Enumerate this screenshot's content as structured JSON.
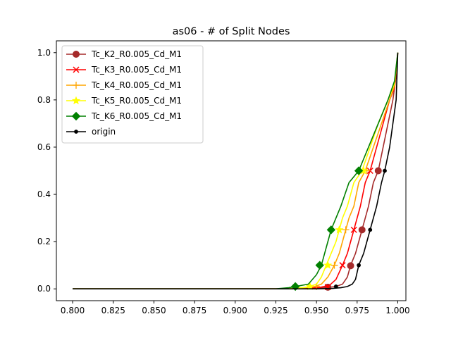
{
  "chart_data": {
    "type": "line",
    "title": "as06 - # of Split Nodes",
    "xlabel": "",
    "ylabel": "",
    "xlim": [
      0.79,
      1.005
    ],
    "ylim": [
      -0.05,
      1.05
    ],
    "xticks": [
      "0.800",
      "0.825",
      "0.850",
      "0.875",
      "0.900",
      "0.925",
      "0.950",
      "0.975",
      "1.000"
    ],
    "yticks": [
      "0.0",
      "0.2",
      "0.4",
      "0.6",
      "0.8",
      "1.0"
    ],
    "legend_position": "upper-left",
    "grid": false,
    "series": [
      {
        "name": "Tc_K2_R0.005_Cd_M1",
        "color": "#a52a2a",
        "marker": "circle",
        "points": [
          [
            0.8,
            0
          ],
          [
            0.93,
            0
          ],
          [
            0.945,
            0.002
          ],
          [
            0.955,
            0.005
          ],
          [
            0.962,
            0.01
          ],
          [
            0.966,
            0.02
          ],
          [
            0.969,
            0.05
          ],
          [
            0.971,
            0.1
          ],
          [
            0.974,
            0.15
          ],
          [
            0.976,
            0.2
          ],
          [
            0.978,
            0.25
          ],
          [
            0.98,
            0.3
          ],
          [
            0.982,
            0.35
          ],
          [
            0.985,
            0.45
          ],
          [
            0.988,
            0.5
          ],
          [
            0.991,
            0.6
          ],
          [
            0.994,
            0.7
          ],
          [
            0.997,
            0.8
          ],
          [
            0.999,
            0.9
          ],
          [
            1.0,
            1.0
          ]
        ],
        "markers": [
          [
            0.957,
            0.007
          ],
          [
            0.971,
            0.098
          ],
          [
            0.978,
            0.25
          ],
          [
            0.988,
            0.5
          ]
        ]
      },
      {
        "name": "Tc_K3_R0.005_Cd_M1",
        "color": "#ff0000",
        "marker": "x",
        "points": [
          [
            0.8,
            0
          ],
          [
            0.93,
            0
          ],
          [
            0.942,
            0.002
          ],
          [
            0.952,
            0.006
          ],
          [
            0.958,
            0.015
          ],
          [
            0.962,
            0.04
          ],
          [
            0.966,
            0.1
          ],
          [
            0.969,
            0.15
          ],
          [
            0.971,
            0.2
          ],
          [
            0.973,
            0.25
          ],
          [
            0.975,
            0.3
          ],
          [
            0.977,
            0.35
          ],
          [
            0.98,
            0.45
          ],
          [
            0.983,
            0.5
          ],
          [
            0.987,
            0.6
          ],
          [
            0.991,
            0.7
          ],
          [
            0.995,
            0.8
          ],
          [
            0.998,
            0.85
          ],
          [
            1.0,
            1.0
          ]
        ],
        "markers": [
          [
            0.957,
            0.008
          ],
          [
            0.966,
            0.1
          ],
          [
            0.973,
            0.25
          ],
          [
            0.983,
            0.5
          ]
        ]
      },
      {
        "name": "Tc_K4_R0.005_Cd_M1",
        "color": "#ffa500",
        "marker": "plus",
        "points": [
          [
            0.8,
            0
          ],
          [
            0.93,
            0
          ],
          [
            0.94,
            0.003
          ],
          [
            0.948,
            0.008
          ],
          [
            0.953,
            0.02
          ],
          [
            0.957,
            0.05
          ],
          [
            0.961,
            0.1
          ],
          [
            0.964,
            0.15
          ],
          [
            0.966,
            0.2
          ],
          [
            0.968,
            0.25
          ],
          [
            0.97,
            0.3
          ],
          [
            0.973,
            0.35
          ],
          [
            0.976,
            0.45
          ],
          [
            0.98,
            0.5
          ],
          [
            0.985,
            0.6
          ],
          [
            0.99,
            0.7
          ],
          [
            0.995,
            0.8
          ],
          [
            0.998,
            0.86
          ],
          [
            1.0,
            1.0
          ]
        ],
        "markers": [
          [
            0.95,
            0.01
          ],
          [
            0.961,
            0.1
          ],
          [
            0.968,
            0.25
          ],
          [
            0.981,
            0.5
          ]
        ]
      },
      {
        "name": "Tc_K5_R0.005_Cd_M1",
        "color": "#ffff00",
        "marker": "star",
        "points": [
          [
            0.8,
            0
          ],
          [
            0.93,
            0
          ],
          [
            0.938,
            0.003
          ],
          [
            0.945,
            0.008
          ],
          [
            0.95,
            0.02
          ],
          [
            0.953,
            0.05
          ],
          [
            0.956,
            0.1
          ],
          [
            0.959,
            0.15
          ],
          [
            0.962,
            0.2
          ],
          [
            0.964,
            0.25
          ],
          [
            0.966,
            0.3
          ],
          [
            0.969,
            0.35
          ],
          [
            0.973,
            0.45
          ],
          [
            0.978,
            0.5
          ],
          [
            0.983,
            0.6
          ],
          [
            0.988,
            0.7
          ],
          [
            0.994,
            0.8
          ],
          [
            0.998,
            0.87
          ],
          [
            1.0,
            1.0
          ]
        ],
        "markers": [
          [
            0.946,
            0.01
          ],
          [
            0.957,
            0.1
          ],
          [
            0.964,
            0.25
          ],
          [
            0.979,
            0.5
          ]
        ]
      },
      {
        "name": "Tc_K6_R0.005_Cd_M1",
        "color": "#008000",
        "marker": "diamond",
        "points": [
          [
            0.8,
            0
          ],
          [
            0.925,
            0
          ],
          [
            0.933,
            0.005
          ],
          [
            0.937,
            0.01
          ],
          [
            0.945,
            0.02
          ],
          [
            0.95,
            0.06
          ],
          [
            0.953,
            0.1
          ],
          [
            0.955,
            0.15
          ],
          [
            0.957,
            0.2
          ],
          [
            0.959,
            0.25
          ],
          [
            0.962,
            0.3
          ],
          [
            0.965,
            0.35
          ],
          [
            0.97,
            0.45
          ],
          [
            0.976,
            0.5
          ],
          [
            0.982,
            0.6
          ],
          [
            0.988,
            0.7
          ],
          [
            0.994,
            0.8
          ],
          [
            0.998,
            0.88
          ],
          [
            1.0,
            1.0
          ]
        ],
        "markers": [
          [
            0.937,
            0.01
          ],
          [
            0.952,
            0.1
          ],
          [
            0.959,
            0.25
          ],
          [
            0.976,
            0.5
          ]
        ]
      },
      {
        "name": "origin",
        "color": "#000000",
        "marker": "dot",
        "points": [
          [
            0.8,
            0
          ],
          [
            0.95,
            0
          ],
          [
            0.96,
            0.002
          ],
          [
            0.965,
            0.005
          ],
          [
            0.969,
            0.01
          ],
          [
            0.972,
            0.02
          ],
          [
            0.974,
            0.04
          ],
          [
            0.976,
            0.1
          ],
          [
            0.979,
            0.15
          ],
          [
            0.981,
            0.2
          ],
          [
            0.983,
            0.25
          ],
          [
            0.985,
            0.3
          ],
          [
            0.987,
            0.35
          ],
          [
            0.99,
            0.45
          ],
          [
            0.992,
            0.5
          ],
          [
            0.995,
            0.6
          ],
          [
            0.997,
            0.7
          ],
          [
            0.999,
            0.8
          ],
          [
            1.0,
            1.0
          ]
        ],
        "markers": [
          [
            0.962,
            0.01
          ],
          [
            0.976,
            0.1
          ],
          [
            0.983,
            0.25
          ],
          [
            0.992,
            0.5
          ]
        ]
      }
    ]
  }
}
